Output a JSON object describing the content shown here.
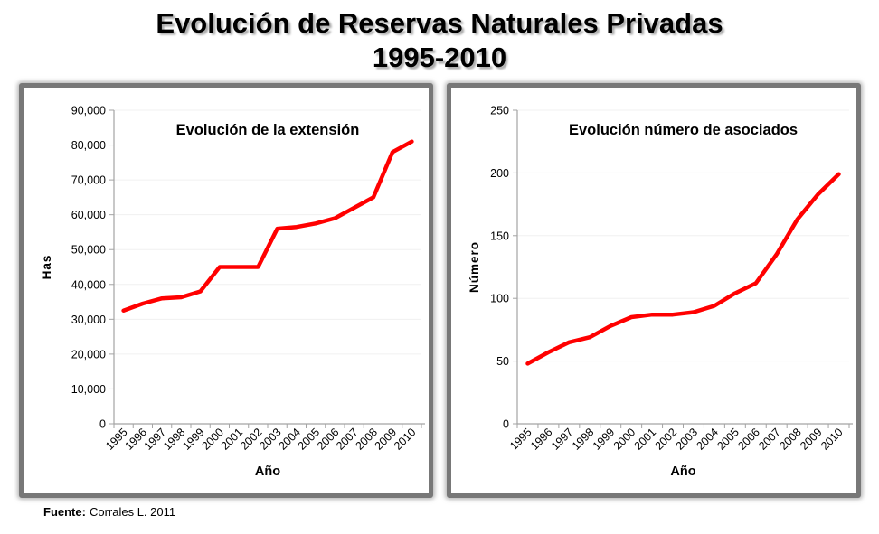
{
  "title": {
    "line1": "Evolución de Reservas Naturales Privadas",
    "line2": "1995-2010"
  },
  "source": {
    "label": "Fuente:",
    "text": "Corrales L.  2011"
  },
  "colors": {
    "series_red": "#FF0000",
    "axis_gray": "#a3a3a3",
    "grid_gray": "#f0f0f0",
    "text_black": "#000000",
    "panel_border_gray": "#787878"
  },
  "chart_data": [
    {
      "type": "line",
      "title": "Evolución  de la extensión",
      "xlabel": "Año",
      "ylabel": "Has",
      "categories": [
        "1995",
        "1996",
        "1997",
        "1998",
        "1999",
        "2000",
        "2001",
        "2002",
        "2003",
        "2004",
        "2005",
        "2006",
        "2007",
        "2008",
        "2009",
        "2010"
      ],
      "values": [
        32500,
        34500,
        36000,
        36300,
        38000,
        45000,
        45000,
        45000,
        56000,
        56500,
        57500,
        59000,
        62000,
        65000,
        78000,
        81000
      ],
      "ylim": [
        0,
        90000
      ],
      "ytick_step": 10000,
      "grid": true,
      "legend": "none",
      "line_color": "#FF0000"
    },
    {
      "type": "line",
      "title": "Evolución  número de asociados",
      "xlabel": "Año",
      "ylabel": "Número",
      "categories": [
        "1995",
        "1996",
        "1997",
        "1998",
        "1999",
        "2000",
        "2001",
        "2002",
        "2003",
        "2004",
        "2005",
        "2006",
        "2007",
        "2008",
        "2009",
        "2010"
      ],
      "values": [
        48,
        57,
        65,
        69,
        78,
        85,
        87,
        87,
        89,
        94,
        104,
        112,
        135,
        163,
        183,
        199
      ],
      "ylim": [
        0,
        250
      ],
      "ytick_step": 50,
      "grid": true,
      "legend": "none",
      "line_color": "#FF0000"
    }
  ]
}
